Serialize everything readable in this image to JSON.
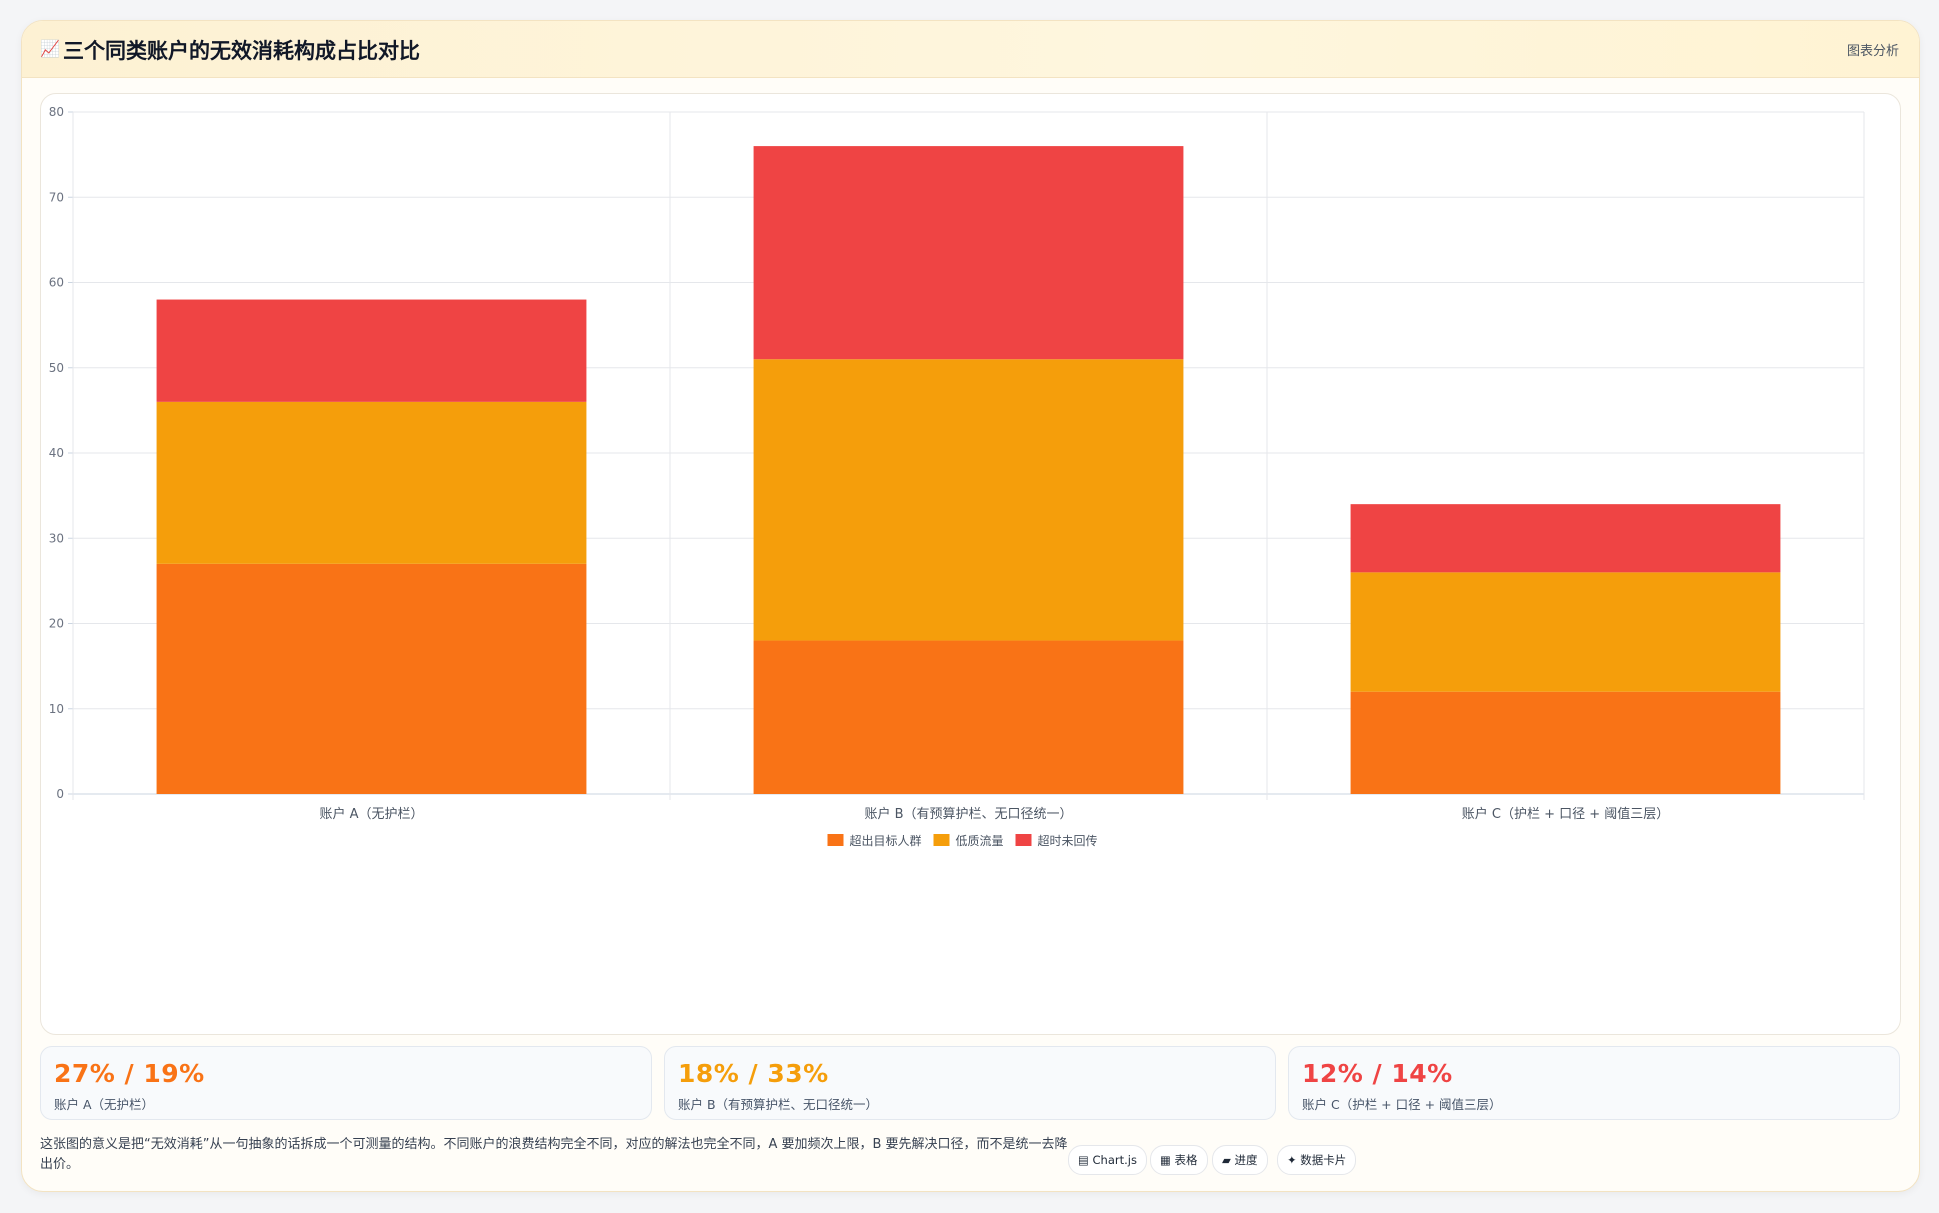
{
  "header": {
    "icon": "📈",
    "title": "三个同类账户的无效消耗构成占比对比",
    "badge": "图表分析"
  },
  "chart_data": {
    "type": "bar",
    "stacked": true,
    "categories": [
      "账户 A（无护栏）",
      "账户 B（有预算护栏、无口径统一）",
      "账户 C（护栏 + 口径 + 阈值三层）"
    ],
    "series": [
      {
        "name": "超出目标人群",
        "color": "#f97316",
        "values": [
          27,
          18,
          12
        ]
      },
      {
        "name": "低质流量",
        "color": "#f59e0b",
        "values": [
          19,
          33,
          14
        ]
      },
      {
        "name": "超时未回传",
        "color": "#ef4444",
        "values": [
          12,
          25,
          8
        ]
      }
    ],
    "ylim": [
      0,
      80
    ],
    "yticks": [
      0,
      10,
      20,
      30,
      40,
      50,
      60,
      70,
      80
    ],
    "grid": true,
    "legend": "bottom"
  },
  "stats": [
    {
      "value": "27% / 19%",
      "label": "账户 A（无护栏）",
      "color": "#f97316"
    },
    {
      "value": "18% / 33%",
      "label": "账户 B（有预算护栏、无口径统一）",
      "color": "#f59e0b"
    },
    {
      "value": "12% / 14%",
      "label": "账户 C（护栏 + 口径 + 阈值三层）",
      "color": "#ef4444"
    }
  ],
  "footer": {
    "text": "这张图的意义是把“无效消耗”从一句抽象的话拆成一个可测量的结构。不同账户的浪费结构完全不同，对应的解法也完全不同，A 要加频次上限，B 要先解决口径，而不是统一去降出价。"
  },
  "tags": [
    {
      "icon": "▤",
      "label": "Chart.js"
    },
    {
      "icon": "▦",
      "label": "表格"
    },
    {
      "icon": "▰",
      "label": "进度"
    },
    {
      "icon": "✦",
      "label": "数据卡片"
    }
  ]
}
